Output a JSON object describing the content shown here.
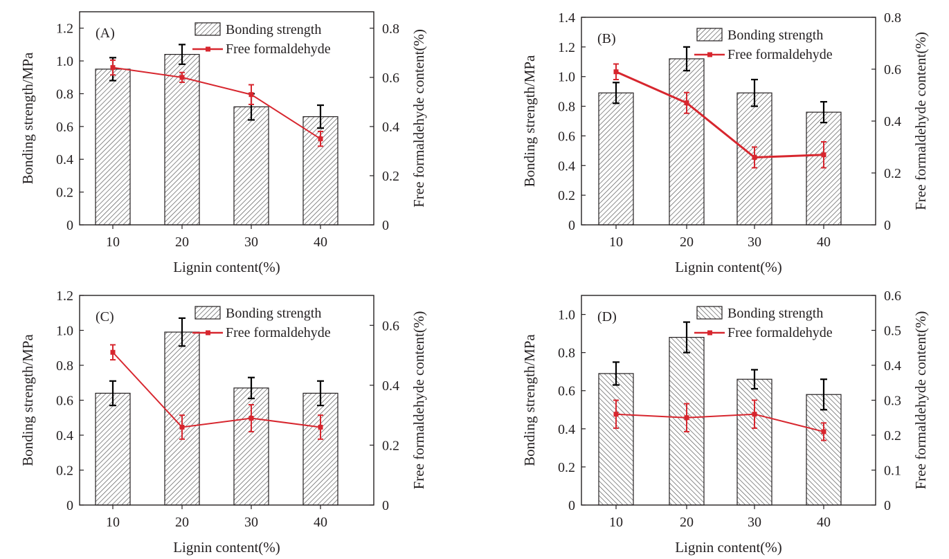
{
  "figure": {
    "legend": {
      "bar_label": "Bonding strength",
      "line_label": "Free formaldehyde"
    },
    "xlabel": "Lignin content(%)",
    "ylabel_left": "Bonding strength/MPa",
    "ylabel_right": "Free formaldehyde content(%)",
    "colors": {
      "line": "#d7262e",
      "error_bar": "#000000",
      "bar_outline": "#231f20",
      "hatch": "#5a5a5a",
      "bar_fill": "#ffffff"
    }
  },
  "chart_data": [
    {
      "type": "bar",
      "panel": "(A)",
      "categories": [
        "10",
        "20",
        "30",
        "40"
      ],
      "series": [
        {
          "name": "Bonding strength",
          "axis": "left",
          "values": [
            0.95,
            1.04,
            0.72,
            0.66
          ],
          "errors": [
            0.07,
            0.06,
            0.08,
            0.07
          ]
        },
        {
          "name": "Free formaldehyde",
          "axis": "right",
          "type": "line",
          "values": [
            0.64,
            0.6,
            0.53,
            0.35
          ],
          "errors": [
            0.03,
            0.02,
            0.04,
            0.03
          ]
        }
      ],
      "left_ticks": [
        "0",
        "0.2",
        "0.4",
        "0.6",
        "0.8",
        "1.0",
        "1.2"
      ],
      "right_ticks": [
        "0",
        "0.2",
        "0.4",
        "0.6",
        "0.8"
      ],
      "ylim": [
        0,
        1.3
      ],
      "ylim_right": [
        0,
        0.867
      ],
      "hatch": "forward"
    },
    {
      "type": "bar",
      "panel": "(B)",
      "categories": [
        "10",
        "20",
        "30",
        "40"
      ],
      "series": [
        {
          "name": "Bonding strength",
          "axis": "left",
          "values": [
            0.89,
            1.12,
            0.89,
            0.76
          ],
          "errors": [
            0.07,
            0.08,
            0.09,
            0.07
          ]
        },
        {
          "name": "Free formaldehyde",
          "axis": "right",
          "type": "line",
          "values": [
            0.59,
            0.47,
            0.26,
            0.27
          ],
          "errors": [
            0.03,
            0.04,
            0.04,
            0.05
          ]
        }
      ],
      "left_ticks": [
        "0",
        "0.2",
        "0.4",
        "0.6",
        "0.8",
        "1.0",
        "1.2",
        "1.4"
      ],
      "right_ticks": [
        "0",
        "0.2",
        "0.4",
        "0.6",
        "0.8"
      ],
      "ylim": [
        0,
        1.4
      ],
      "ylim_right": [
        0,
        0.8
      ],
      "hatch": "forward"
    },
    {
      "type": "bar",
      "panel": "(C)",
      "categories": [
        "10",
        "20",
        "30",
        "40"
      ],
      "series": [
        {
          "name": "Bonding strength",
          "axis": "left",
          "values": [
            0.64,
            0.99,
            0.67,
            0.64
          ],
          "errors": [
            0.07,
            0.08,
            0.06,
            0.07
          ]
        },
        {
          "name": "Free formaldehyde",
          "axis": "right",
          "type": "line",
          "values": [
            0.51,
            0.26,
            0.29,
            0.26
          ],
          "errors": [
            0.025,
            0.04,
            0.045,
            0.04
          ]
        }
      ],
      "left_ticks": [
        "0",
        "0.2",
        "0.4",
        "0.6",
        "0.8",
        "1.0",
        "1.2"
      ],
      "right_ticks": [
        "0",
        "0.2",
        "0.4",
        "0.6"
      ],
      "ylim": [
        0,
        1.2
      ],
      "ylim_right": [
        0,
        0.7
      ],
      "hatch": "forward"
    },
    {
      "type": "bar",
      "panel": "(D)",
      "categories": [
        "10",
        "20",
        "30",
        "40"
      ],
      "series": [
        {
          "name": "Bonding strength",
          "axis": "left",
          "values": [
            0.69,
            0.88,
            0.66,
            0.58
          ],
          "errors": [
            0.06,
            0.08,
            0.05,
            0.08
          ]
        },
        {
          "name": "Free formaldehyde",
          "axis": "right",
          "type": "line",
          "values": [
            0.26,
            0.25,
            0.26,
            0.21
          ],
          "errors": [
            0.04,
            0.04,
            0.04,
            0.025
          ]
        }
      ],
      "left_ticks": [
        "0",
        "0.2",
        "0.4",
        "0.6",
        "0.8",
        "1.0"
      ],
      "right_ticks": [
        "0",
        "0.1",
        "0.2",
        "0.3",
        "0.4",
        "0.5",
        "0.6"
      ],
      "ylim": [
        0,
        1.1
      ],
      "ylim_right": [
        0,
        0.6
      ],
      "hatch": "backward"
    }
  ]
}
